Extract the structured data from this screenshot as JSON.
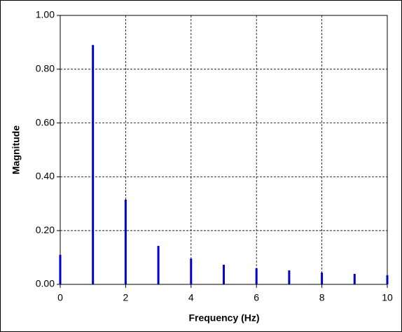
{
  "chart_data": {
    "type": "stem",
    "xlabel": "Frequency  (Hz)",
    "ylabel": "Magnitude",
    "x": [
      0,
      1,
      2,
      3,
      4,
      5,
      6,
      7,
      8,
      9,
      10
    ],
    "values": [
      0.11,
      0.89,
      0.315,
      0.143,
      0.096,
      0.073,
      0.06,
      0.052,
      0.044,
      0.039,
      0.034
    ],
    "color": "#0000cc",
    "xlim": [
      0,
      10
    ],
    "xticks": [
      0,
      2,
      4,
      6,
      8,
      10
    ],
    "ylim": [
      0,
      1
    ],
    "yticks": [
      {
        "value": 0,
        "label": "0.00"
      },
      {
        "value": 0.2,
        "label": "0.20"
      },
      {
        "value": 0.4,
        "label": "0.40"
      },
      {
        "value": 0.6,
        "label": "0.60"
      },
      {
        "value": 0.8,
        "label": "0.80"
      },
      {
        "value": 1,
        "label": "1.00"
      }
    ],
    "grid": true
  }
}
